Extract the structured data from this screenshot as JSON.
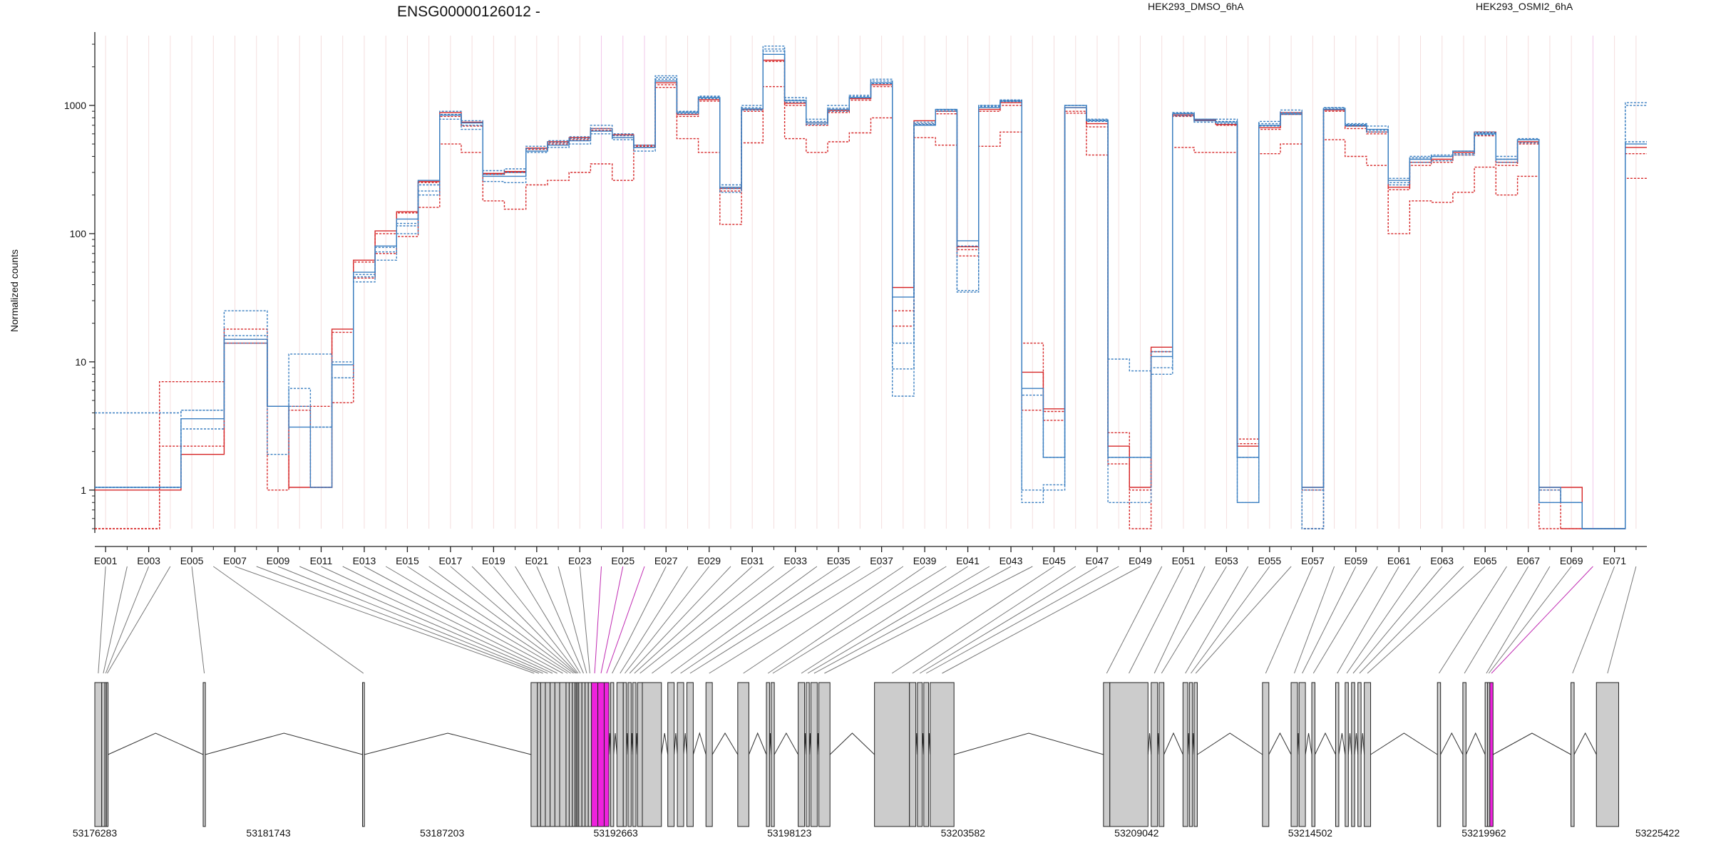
{
  "chart_data": {
    "type": "line",
    "title": "ENSG00000126012 -",
    "ylabel": "Normalized counts",
    "y_scale": "log",
    "ylim": [
      0.5,
      3500
    ],
    "y_ticks": [
      1,
      10,
      100,
      1000
    ],
    "y_tick_labels": [
      "1",
      "10",
      "100",
      "1000"
    ],
    "exon_labels": [
      "E001",
      "E003",
      "E005",
      "E007",
      "E009",
      "E011",
      "E013",
      "E015",
      "E017",
      "E019",
      "E021",
      "E023",
      "E025",
      "E027",
      "E029",
      "E031",
      "E033",
      "E035",
      "E037",
      "E039",
      "E041",
      "E043",
      "E045",
      "E047",
      "E049",
      "E051",
      "E053",
      "E055",
      "E057",
      "E059",
      "E061",
      "E063",
      "E065",
      "E067",
      "E069",
      "E071"
    ],
    "exon_count": 72,
    "genomic_ticks": [
      "53176283",
      "53181743",
      "53187203",
      "53192663",
      "53198123",
      "53203582",
      "53209042",
      "53214502",
      "53219962",
      "53225422"
    ],
    "genomic_range": [
      53176283,
      53225422
    ],
    "legend": [
      {
        "label": "HEK293_DMSO_6hA",
        "color": "#d62728"
      },
      {
        "label": "HEK293_OSMI2_6hA",
        "color": "#3a7fc1"
      }
    ],
    "highlighted_exons": [
      23,
      24,
      25,
      69
    ],
    "exon_blocks": [
      {
        "s": 53176283,
        "e": 53176500
      },
      {
        "s": 53176500,
        "e": 53176600
      },
      {
        "s": 53176600,
        "e": 53176650
      },
      {
        "s": 53176650,
        "e": 53176700
      },
      {
        "s": 53179690,
        "e": 53179760
      },
      {
        "s": 53184700,
        "e": 53184760
      },
      {
        "s": 53190000,
        "e": 53190200
      },
      {
        "s": 53190200,
        "e": 53190300
      },
      {
        "s": 53190300,
        "e": 53190450
      },
      {
        "s": 53190450,
        "e": 53190600
      },
      {
        "s": 53190600,
        "e": 53190750
      },
      {
        "s": 53190750,
        "e": 53190900
      },
      {
        "s": 53190900,
        "e": 53191100
      },
      {
        "s": 53191100,
        "e": 53191200
      },
      {
        "s": 53191200,
        "e": 53191300
      },
      {
        "s": 53191300,
        "e": 53191380
      },
      {
        "s": 53191380,
        "e": 53191420
      },
      {
        "s": 53191420,
        "e": 53191460
      },
      {
        "s": 53191460,
        "e": 53191500
      },
      {
        "s": 53191500,
        "e": 53191600
      },
      {
        "s": 53191600,
        "e": 53191700
      },
      {
        "s": 53191700,
        "e": 53191800
      },
      {
        "s": 53191800,
        "e": 53191900
      },
      {
        "s": 53191900,
        "e": 53192100
      },
      {
        "s": 53192100,
        "e": 53192300
      },
      {
        "s": 53192300,
        "e": 53192450
      },
      {
        "s": 53192500,
        "e": 53192600
      },
      {
        "s": 53192700,
        "e": 53192900
      },
      {
        "s": 53192900,
        "e": 53193000
      },
      {
        "s": 53193050,
        "e": 53193150
      },
      {
        "s": 53193200,
        "e": 53193300
      },
      {
        "s": 53193350,
        "e": 53193500
      },
      {
        "s": 53193500,
        "e": 53194100
      },
      {
        "s": 53194300,
        "e": 53194500
      },
      {
        "s": 53194600,
        "e": 53194800
      },
      {
        "s": 53194900,
        "e": 53195100
      },
      {
        "s": 53195500,
        "e": 53195700
      },
      {
        "s": 53196500,
        "e": 53196850
      },
      {
        "s": 53197400,
        "e": 53197500
      },
      {
        "s": 53197550,
        "e": 53197650
      },
      {
        "s": 53198400,
        "e": 53198600
      },
      {
        "s": 53198650,
        "e": 53198750
      },
      {
        "s": 53198800,
        "e": 53199000
      },
      {
        "s": 53199050,
        "e": 53199400
      },
      {
        "s": 53200800,
        "e": 53201900
      },
      {
        "s": 53201900,
        "e": 53202100
      },
      {
        "s": 53202150,
        "e": 53202300
      },
      {
        "s": 53202350,
        "e": 53202500
      },
      {
        "s": 53202550,
        "e": 53203300
      },
      {
        "s": 53208000,
        "e": 53208200
      },
      {
        "s": 53208200,
        "e": 53209400
      },
      {
        "s": 53209500,
        "e": 53209700
      },
      {
        "s": 53209750,
        "e": 53209900
      },
      {
        "s": 53210500,
        "e": 53210650
      },
      {
        "s": 53210700,
        "e": 53210800
      },
      {
        "s": 53210850,
        "e": 53210950
      },
      {
        "s": 53213000,
        "e": 53213200
      },
      {
        "s": 53213900,
        "e": 53214100
      },
      {
        "s": 53214150,
        "e": 53214350
      },
      {
        "s": 53214550,
        "e": 53214650
      },
      {
        "s": 53215300,
        "e": 53215400
      },
      {
        "s": 53215600,
        "e": 53215700
      },
      {
        "s": 53215800,
        "e": 53215900
      },
      {
        "s": 53216000,
        "e": 53216100
      },
      {
        "s": 53216200,
        "e": 53216400
      },
      {
        "s": 53218500,
        "e": 53218600
      },
      {
        "s": 53219300,
        "e": 53219400
      },
      {
        "s": 53220000,
        "e": 53220080
      },
      {
        "s": 53220080,
        "e": 53220150
      },
      {
        "s": 53220150,
        "e": 53220250
      },
      {
        "s": 53222700,
        "e": 53222800
      },
      {
        "s": 53223500,
        "e": 53224200
      }
    ],
    "series": [
      {
        "group": "HEK293_DMSO_6hA",
        "color": "#d62728",
        "dash": "solid",
        "values": [
          1,
          1,
          1,
          1,
          1.9,
          1.9,
          14,
          14,
          4.5,
          1.05,
          1.05,
          18,
          62,
          105,
          148,
          255,
          880,
          740,
          295,
          305,
          465,
          520,
          560,
          660,
          590,
          490,
          1500,
          850,
          1110,
          225,
          930,
          2250,
          1040,
          730,
          910,
          1130,
          1450,
          38,
          760,
          900,
          79,
          930,
          1050,
          8.3,
          4.3,
          960,
          720,
          2.2,
          1.05,
          13,
          840,
          770,
          710,
          2.2,
          670,
          880,
          1.05,
          920,
          690,
          620,
          230,
          360,
          380,
          430,
          620,
          360,
          520,
          1.05,
          1.05,
          0.5,
          0.5,
          470
        ]
      },
      {
        "group": "HEK293_DMSO_6hA",
        "color": "#d62728",
        "dash": "dashed",
        "values": [
          0.5,
          0.5,
          0.5,
          7,
          7,
          7,
          18,
          18,
          4.5,
          4.5,
          4.5,
          17,
          60,
          100,
          145,
          250,
          820,
          690,
          290,
          300,
          455,
          500,
          540,
          640,
          560,
          470,
          1450,
          820,
          1080,
          215,
          900,
          2200,
          1000,
          700,
          880,
          1100,
          1400,
          25,
          720,
          860,
          75,
          900,
          1000,
          4.2,
          3.5,
          900,
          680,
          2.8,
          1.0,
          12,
          820,
          760,
          700,
          2.3,
          650,
          850,
          1.0,
          900,
          660,
          600,
          220,
          340,
          360,
          410,
          580,
          340,
          500,
          1.0,
          0.5,
          0.5,
          0.5,
          420
        ]
      },
      {
        "group": "HEK293_DMSO_6hA",
        "color": "#d62728",
        "dash": "dashed",
        "values": [
          0.5,
          0.5,
          0.5,
          2.2,
          2.2,
          2.2,
          15,
          15,
          1.0,
          4.2,
          1.05,
          4.8,
          45,
          70,
          95,
          160,
          500,
          430,
          180,
          155,
          240,
          260,
          300,
          350,
          260,
          480,
          1380,
          550,
          430,
          118,
          510,
          1400,
          550,
          430,
          520,
          610,
          800,
          19,
          560,
          490,
          67,
          480,
          620,
          14,
          4.1,
          870,
          410,
          1.6,
          0.5,
          12,
          470,
          430,
          430,
          2.5,
          420,
          500,
          0.5,
          540,
          400,
          340,
          100,
          180,
          175,
          210,
          330,
          200,
          280,
          0.5,
          0.5,
          0.5,
          0.5,
          270
        ]
      },
      {
        "group": "HEK293_OSMI2_6hA",
        "color": "#3a7fc1",
        "dash": "solid",
        "values": [
          1.05,
          1.05,
          1.05,
          1.05,
          3.6,
          3.6,
          15,
          15,
          4.5,
          3.1,
          1.05,
          9.5,
          50,
          80,
          130,
          260,
          840,
          730,
          280,
          280,
          440,
          490,
          530,
          630,
          560,
          470,
          1550,
          880,
          1150,
          230,
          940,
          2500,
          1090,
          730,
          930,
          1150,
          1500,
          32,
          700,
          930,
          88,
          960,
          1080,
          6.2,
          1.8,
          960,
          760,
          1.8,
          1.8,
          11,
          860,
          760,
          740,
          1.8,
          700,
          860,
          1.05,
          930,
          700,
          650,
          260,
          380,
          400,
          440,
          600,
          380,
          540,
          1.05,
          0.8,
          0.5,
          0.5,
          500
        ]
      },
      {
        "group": "HEK293_OSMI2_6hA",
        "color": "#3a7fc1",
        "dash": "dashed",
        "values": [
          4,
          4,
          4,
          4,
          4.2,
          4.2,
          25,
          25,
          4.5,
          11.5,
          11.5,
          7.5,
          48,
          78,
          115,
          240,
          900,
          760,
          310,
          320,
          480,
          530,
          570,
          700,
          600,
          490,
          1700,
          900,
          1180,
          240,
          1000,
          2900,
          1150,
          780,
          1000,
          1200,
          1600,
          8.8,
          740,
          930,
          35,
          1000,
          1100,
          0.8,
          1.1,
          1000,
          780,
          10.5,
          8.5,
          9,
          880,
          780,
          780,
          0.8,
          750,
          920,
          0.5,
          960,
          720,
          690,
          270,
          400,
          410,
          440,
          620,
          400,
          550,
          0.8,
          0.8,
          0.5,
          0.5,
          520
        ]
      },
      {
        "group": "HEK293_OSMI2_6hA",
        "color": "#3a7fc1",
        "dash": "dashed",
        "values": [
          1.05,
          1.05,
          1.05,
          1.05,
          3,
          3,
          14,
          14,
          1.9,
          6.2,
          3.1,
          7.5,
          42,
          62,
          100,
          200,
          780,
          650,
          255,
          250,
          430,
          470,
          500,
          600,
          540,
          440,
          1600,
          860,
          1130,
          210,
          920,
          2650,
          1060,
          710,
          900,
          1150,
          1480,
          5.4,
          720,
          900,
          36,
          980,
          1070,
          1.0,
          1.0,
          1000,
          750,
          0.8,
          0.8,
          8,
          830,
          740,
          720,
          0.8,
          690,
          850,
          0.5,
          950,
          690,
          620,
          250,
          360,
          370,
          410,
          590,
          360,
          510,
          0.8,
          0.8,
          0.5,
          0.5,
          1050
        ]
      },
      {
        "group": "HEK293_OSMI2_6hA",
        "color": "#3a7fc1",
        "dash": "dashed",
        "values": [
          1.05,
          1.05,
          1.05,
          1.05,
          4.2,
          4.2,
          16,
          16,
          4.5,
          4.5,
          3.1,
          10,
          46,
          72,
          120,
          215,
          850,
          700,
          290,
          300,
          460,
          510,
          550,
          660,
          580,
          470,
          1650,
          890,
          1160,
          225,
          960,
          2750,
          1100,
          750,
          950,
          1170,
          1550,
          14,
          710,
          920,
          80,
          1000,
          1100,
          5.5,
          1.8,
          1000,
          770,
          1.8,
          1.8,
          12,
          870,
          780,
          750,
          1.8,
          720,
          880,
          1.0,
          960,
          710,
          640,
          240,
          390,
          400,
          420,
          610,
          380,
          540,
          1.0,
          0.8,
          0.5,
          0.5,
          1000
        ]
      }
    ]
  }
}
